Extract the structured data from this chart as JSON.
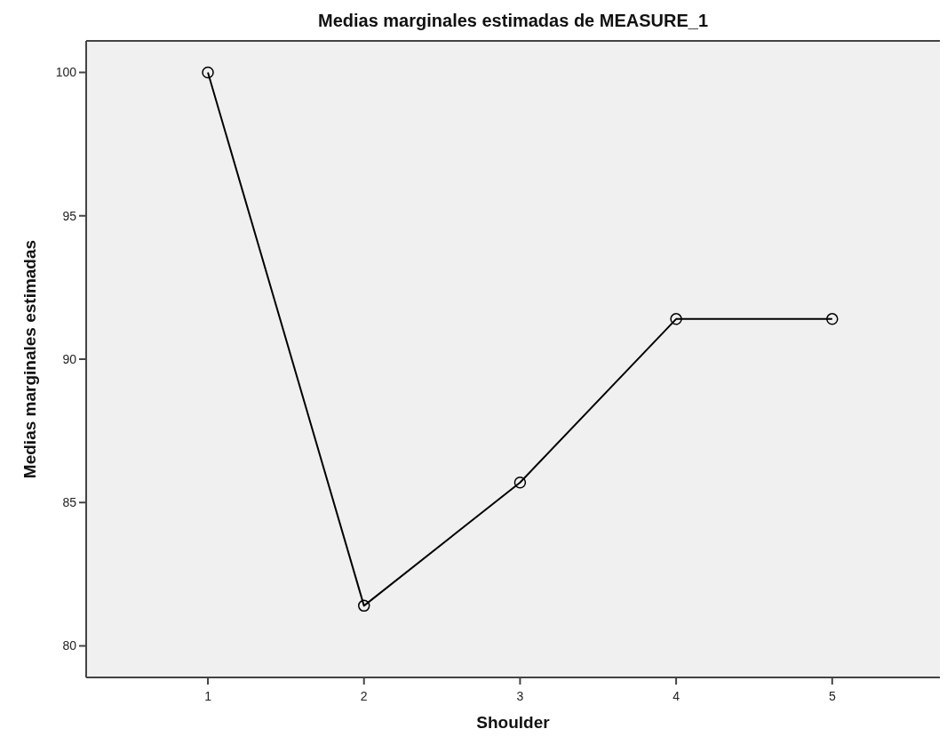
{
  "chart_data": {
    "type": "line",
    "title": "Medias marginales estimadas de MEASURE_1",
    "xlabel": "Shoulder",
    "ylabel": "Medias marginales estimadas",
    "categories": [
      "1",
      "2",
      "3",
      "4",
      "5"
    ],
    "series": [
      {
        "color": "#000000",
        "values": [
          100,
          81.4,
          85.7,
          91.4,
          91.4
        ]
      }
    ],
    "ylim": [
      78.9,
      101.1
    ],
    "yticks": [
      80,
      85,
      90,
      95,
      100
    ],
    "marker": "circle",
    "line_style": "solid",
    "grid": false
  }
}
